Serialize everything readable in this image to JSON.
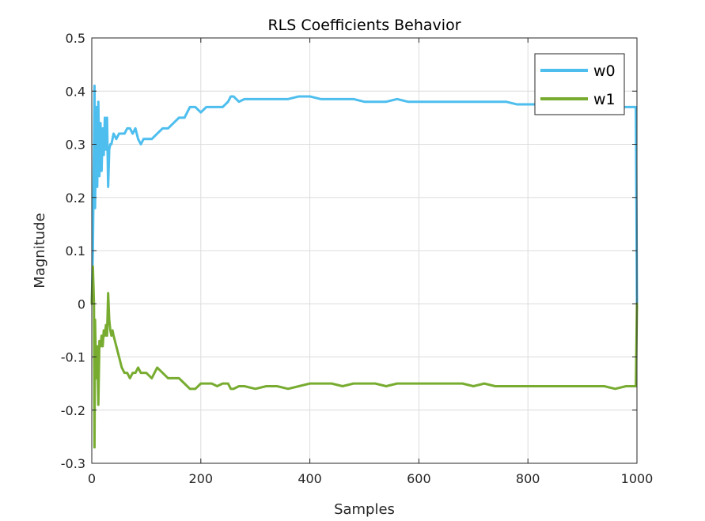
{
  "chart_data": {
    "type": "line",
    "title": "RLS Coefficients Behavior",
    "xlabel": "Samples",
    "ylabel": "Magnitude",
    "xlim": [
      0,
      1000
    ],
    "ylim": [
      -0.3,
      0.5
    ],
    "xticks": [
      "0",
      "200",
      "400",
      "600",
      "800",
      "1000"
    ],
    "yticks": [
      "-0.3",
      "-0.2",
      "-0.1",
      "0",
      "0.1",
      "0.2",
      "0.3",
      "0.4",
      "0.5"
    ],
    "grid": true,
    "legend_position": "top-right",
    "series": [
      {
        "name": "w0",
        "color": "#4DBEEE",
        "x": [
          0,
          2,
          4,
          5,
          6,
          8,
          10,
          12,
          14,
          16,
          18,
          20,
          22,
          24,
          26,
          28,
          30,
          32,
          34,
          36,
          38,
          40,
          45,
          50,
          55,
          60,
          65,
          70,
          75,
          80,
          85,
          90,
          95,
          100,
          110,
          120,
          130,
          140,
          150,
          160,
          170,
          180,
          190,
          200,
          210,
          220,
          230,
          240,
          250,
          255,
          260,
          270,
          280,
          300,
          320,
          340,
          360,
          380,
          400,
          420,
          440,
          460,
          480,
          500,
          520,
          540,
          560,
          580,
          600,
          620,
          640,
          660,
          680,
          700,
          720,
          740,
          760,
          780,
          800,
          820,
          840,
          860,
          880,
          900,
          920,
          940,
          960,
          980,
          995,
          998,
          1000
        ],
        "values": [
          0,
          0.1,
          0.3,
          0.41,
          0.18,
          0.37,
          0.22,
          0.38,
          0.24,
          0.34,
          0.25,
          0.33,
          0.28,
          0.35,
          0.29,
          0.35,
          0.22,
          0.29,
          0.3,
          0.3,
          0.31,
          0.32,
          0.31,
          0.32,
          0.32,
          0.32,
          0.33,
          0.33,
          0.32,
          0.33,
          0.31,
          0.3,
          0.31,
          0.31,
          0.31,
          0.32,
          0.33,
          0.33,
          0.34,
          0.35,
          0.35,
          0.37,
          0.37,
          0.36,
          0.37,
          0.37,
          0.37,
          0.37,
          0.38,
          0.39,
          0.39,
          0.38,
          0.385,
          0.385,
          0.385,
          0.385,
          0.385,
          0.39,
          0.39,
          0.385,
          0.385,
          0.385,
          0.385,
          0.38,
          0.38,
          0.38,
          0.385,
          0.38,
          0.38,
          0.38,
          0.38,
          0.38,
          0.38,
          0.38,
          0.38,
          0.38,
          0.38,
          0.375,
          0.375,
          0.375,
          0.375,
          0.375,
          0.375,
          0.37,
          0.37,
          0.37,
          0.37,
          0.37,
          0.37,
          0.37,
          0.0
        ]
      },
      {
        "name": "w1",
        "color": "#77AC30",
        "x": [
          0,
          2,
          4,
          5,
          6,
          8,
          10,
          12,
          14,
          16,
          18,
          20,
          22,
          24,
          26,
          28,
          30,
          32,
          34,
          36,
          38,
          40,
          45,
          50,
          55,
          60,
          65,
          70,
          75,
          80,
          85,
          90,
          95,
          100,
          110,
          120,
          130,
          140,
          150,
          160,
          170,
          180,
          190,
          200,
          210,
          220,
          230,
          240,
          250,
          255,
          260,
          270,
          280,
          300,
          320,
          340,
          360,
          380,
          400,
          420,
          440,
          460,
          480,
          500,
          520,
          540,
          560,
          580,
          600,
          620,
          640,
          660,
          680,
          700,
          720,
          740,
          760,
          780,
          800,
          820,
          840,
          860,
          880,
          900,
          920,
          940,
          960,
          980,
          995,
          998,
          1000
        ],
        "values": [
          0,
          0.07,
          0.0,
          -0.27,
          -0.03,
          -0.14,
          -0.08,
          -0.19,
          -0.07,
          -0.08,
          -0.06,
          -0.08,
          -0.05,
          -0.06,
          -0.04,
          -0.06,
          0.02,
          -0.03,
          -0.05,
          -0.06,
          -0.05,
          -0.06,
          -0.08,
          -0.1,
          -0.12,
          -0.13,
          -0.13,
          -0.14,
          -0.13,
          -0.13,
          -0.12,
          -0.13,
          -0.13,
          -0.13,
          -0.14,
          -0.12,
          -0.13,
          -0.14,
          -0.14,
          -0.14,
          -0.15,
          -0.16,
          -0.16,
          -0.15,
          -0.15,
          -0.15,
          -0.155,
          -0.15,
          -0.15,
          -0.16,
          -0.16,
          -0.155,
          -0.155,
          -0.16,
          -0.155,
          -0.155,
          -0.16,
          -0.155,
          -0.15,
          -0.15,
          -0.15,
          -0.155,
          -0.15,
          -0.15,
          -0.15,
          -0.155,
          -0.15,
          -0.15,
          -0.15,
          -0.15,
          -0.15,
          -0.15,
          -0.15,
          -0.155,
          -0.15,
          -0.155,
          -0.155,
          -0.155,
          -0.155,
          -0.155,
          -0.155,
          -0.155,
          -0.155,
          -0.155,
          -0.155,
          -0.155,
          -0.16,
          -0.155,
          -0.155,
          -0.155,
          0.0
        ]
      }
    ]
  }
}
